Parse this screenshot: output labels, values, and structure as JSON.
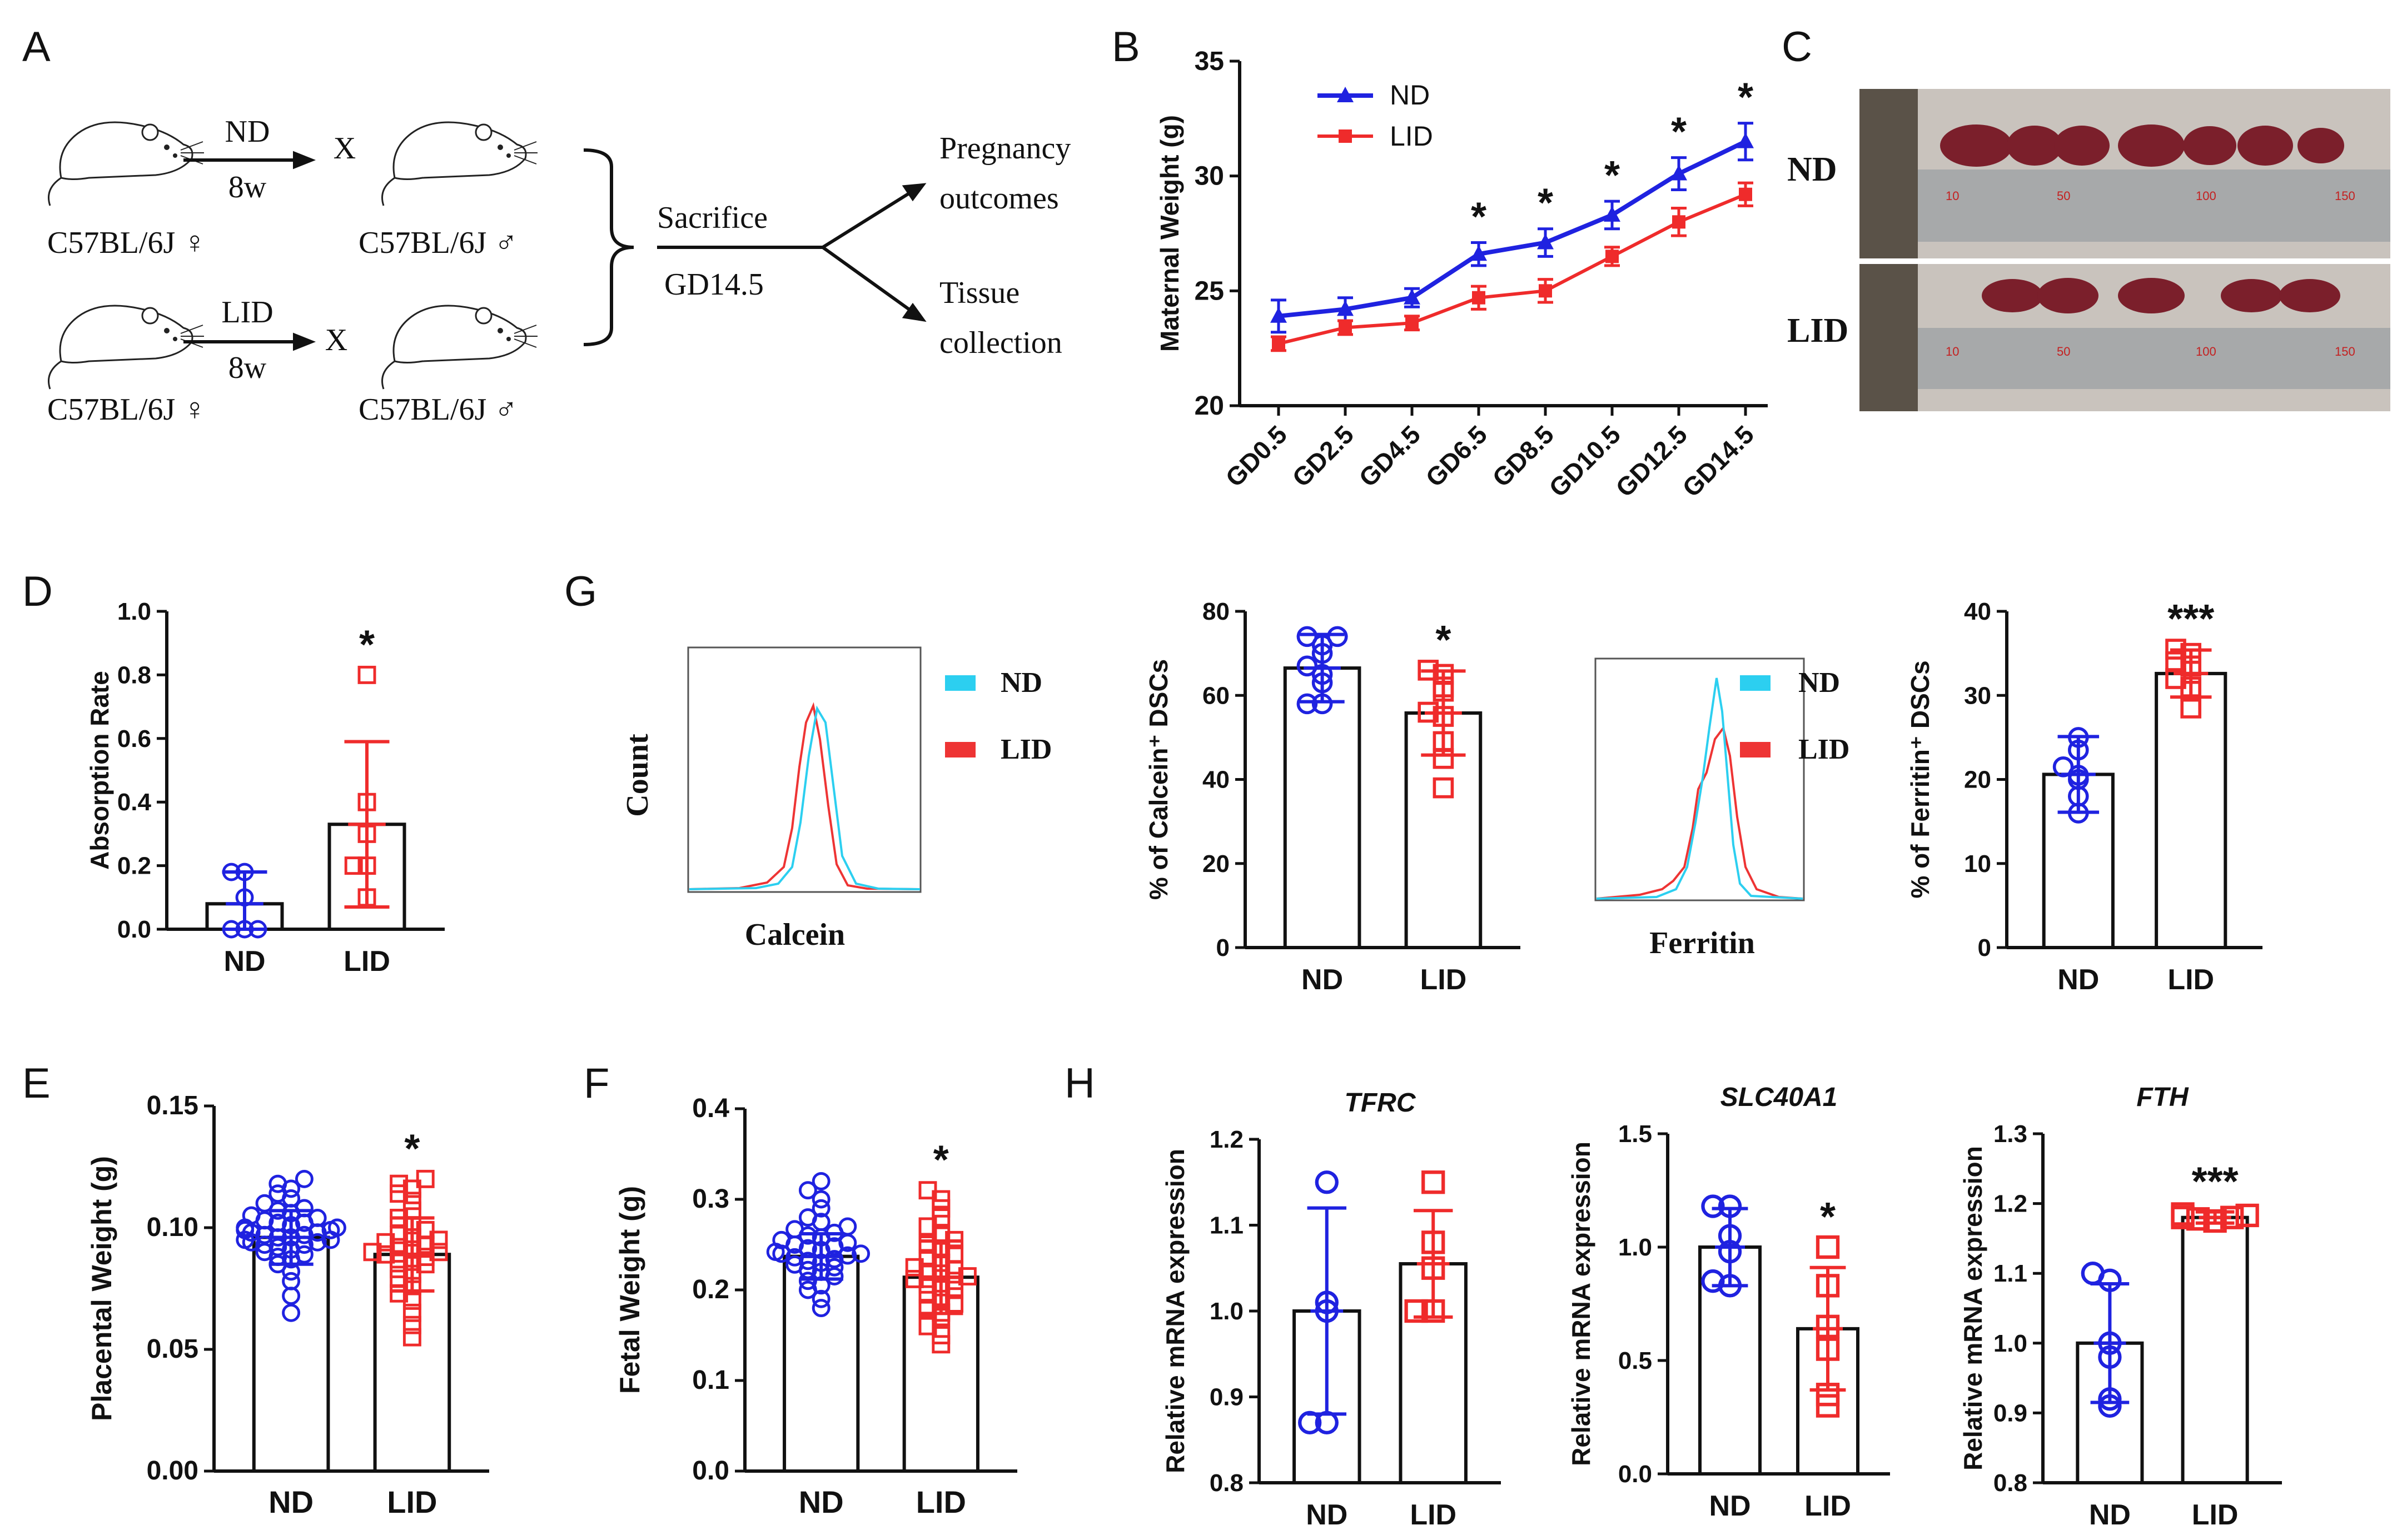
{
  "panel_letters": {
    "A": "A",
    "B": "B",
    "C": "C",
    "D": "D",
    "E": "E",
    "F": "F",
    "G": "G",
    "H": "H"
  },
  "schematic": {
    "top_arrow_label": "ND",
    "bottom_arrow_label": "LID",
    "duration": "8w",
    "cross": "X",
    "female": "C57BL/6J ♀",
    "male": "C57BL/6J ♂",
    "sacrifice": "Sacrifice",
    "gd": "GD14.5",
    "outcome1_line1": "Pregnancy",
    "outcome1_line2": "outcomes",
    "outcome2_line1": "Tissue",
    "outcome2_line2": "collection"
  },
  "photo": {
    "row1_label": "ND",
    "row2_label": "LID",
    "ruler_ticks": [
      "10",
      "50",
      "100",
      "150"
    ]
  },
  "colors": {
    "nd": "#1f22e0",
    "lid": "#ef2b2b",
    "cyan": "#2ccff0",
    "red_line": "#ee3434"
  },
  "chart_data": [
    {
      "id": "B",
      "type": "line",
      "ylabel": "Maternal Weight (g)",
      "ylim": [
        20,
        35
      ],
      "yticks": [
        20,
        25,
        30,
        35
      ],
      "categories": [
        "GD0.5",
        "GD2.5",
        "GD4.5",
        "GD6.5",
        "GD8.5",
        "GD10.5",
        "GD12.5",
        "GD14.5"
      ],
      "series": [
        {
          "name": "ND",
          "values": [
            23.9,
            24.2,
            24.7,
            26.6,
            27.1,
            28.3,
            30.1,
            31.5
          ],
          "errors": [
            0.7,
            0.5,
            0.4,
            0.5,
            0.6,
            0.6,
            0.7,
            0.8
          ]
        },
        {
          "name": "LID",
          "values": [
            22.7,
            23.4,
            23.6,
            24.7,
            25.0,
            26.5,
            28.0,
            29.2
          ],
          "errors": [
            0.3,
            0.3,
            0.3,
            0.5,
            0.5,
            0.4,
            0.6,
            0.5
          ]
        }
      ],
      "significance": [
        "",
        "",
        "",
        "*",
        "*",
        "*",
        "*",
        "*"
      ],
      "legend": "top-left"
    },
    {
      "id": "D",
      "type": "bar",
      "ylabel": "Absorption Rate",
      "ylim": [
        0,
        1.0
      ],
      "yticks": [
        "0.0",
        "0.2",
        "0.4",
        "0.6",
        "0.8",
        "1.0"
      ],
      "categories": [
        "ND",
        "LID"
      ],
      "values": [
        0.08,
        0.33
      ],
      "errors": [
        0.1,
        0.26
      ],
      "points": [
        [
          0.0,
          0.0,
          0.0,
          0.1,
          0.18,
          0.18
        ],
        [
          0.1,
          0.2,
          0.3,
          0.4,
          0.8,
          0.2
        ]
      ],
      "significance": [
        "",
        "*"
      ]
    },
    {
      "id": "E",
      "type": "bar",
      "ylabel": "Placental Weight (g)",
      "ylim": [
        0,
        0.15
      ],
      "yticks": [
        "0.00",
        "0.05",
        "0.10",
        "0.15"
      ],
      "categories": [
        "ND",
        "LID"
      ],
      "values": [
        0.096,
        0.089
      ],
      "errors": [
        0.011,
        0.015
      ],
      "points": [
        [
          0.065,
          0.072,
          0.078,
          0.082,
          0.085,
          0.087,
          0.088,
          0.089,
          0.09,
          0.091,
          0.092,
          0.093,
          0.093,
          0.094,
          0.094,
          0.095,
          0.095,
          0.096,
          0.096,
          0.097,
          0.097,
          0.098,
          0.098,
          0.099,
          0.099,
          0.1,
          0.1,
          0.101,
          0.102,
          0.102,
          0.103,
          0.104,
          0.105,
          0.106,
          0.107,
          0.108,
          0.11,
          0.112,
          0.114,
          0.116,
          0.118,
          0.12
        ],
        [
          0.055,
          0.06,
          0.065,
          0.07,
          0.073,
          0.076,
          0.079,
          0.081,
          0.083,
          0.085,
          0.086,
          0.087,
          0.088,
          0.089,
          0.09,
          0.09,
          0.091,
          0.092,
          0.093,
          0.094,
          0.095,
          0.096,
          0.097,
          0.099,
          0.101,
          0.104,
          0.107,
          0.111,
          0.114,
          0.116,
          0.118,
          0.12
        ]
      ],
      "significance": [
        "",
        "*"
      ]
    },
    {
      "id": "F",
      "type": "bar",
      "ylabel": "Fetal Weight (g)",
      "ylim": [
        0,
        0.4
      ],
      "yticks": [
        "0.0",
        "0.1",
        "0.2",
        "0.3",
        "0.4"
      ],
      "categories": [
        "ND",
        "LID"
      ],
      "values": [
        0.237,
        0.214
      ],
      "errors": [
        0.025,
        0.04
      ],
      "points": [
        [
          0.18,
          0.19,
          0.2,
          0.205,
          0.21,
          0.215,
          0.22,
          0.222,
          0.225,
          0.228,
          0.23,
          0.232,
          0.234,
          0.236,
          0.238,
          0.24,
          0.24,
          0.242,
          0.244,
          0.246,
          0.248,
          0.25,
          0.252,
          0.255,
          0.258,
          0.26,
          0.263,
          0.267,
          0.27,
          0.275,
          0.28,
          0.29,
          0.3,
          0.31,
          0.32
        ],
        [
          0.14,
          0.15,
          0.16,
          0.17,
          0.175,
          0.18,
          0.185,
          0.19,
          0.195,
          0.2,
          0.203,
          0.206,
          0.21,
          0.212,
          0.215,
          0.218,
          0.22,
          0.222,
          0.225,
          0.23,
          0.235,
          0.24,
          0.245,
          0.25,
          0.255,
          0.26,
          0.27,
          0.28,
          0.29,
          0.3,
          0.31
        ]
      ],
      "significance": [
        "",
        "*"
      ]
    },
    {
      "id": "G_calcein_hist",
      "type": "line",
      "xlabel": "Calcein",
      "ylabel": "Count",
      "series": [
        {
          "name": "ND"
        },
        {
          "name": "LID"
        }
      ]
    },
    {
      "id": "G_calcein_bar",
      "type": "bar",
      "ylabel": "% of  Calcein⁺ DSCs",
      "ylim": [
        0,
        80
      ],
      "yticks": [
        "0",
        "20",
        "40",
        "60",
        "80"
      ],
      "categories": [
        "ND",
        "LID"
      ],
      "values": [
        66.5,
        55.8
      ],
      "errors": [
        8,
        10
      ],
      "points": [
        [
          58,
          58,
          63,
          65,
          67,
          70,
          72,
          74,
          74
        ],
        [
          38,
          45,
          49,
          55,
          56,
          61,
          62,
          65,
          66
        ]
      ],
      "significance": [
        "",
        "*"
      ]
    },
    {
      "id": "G_ferritin_hist",
      "type": "line",
      "xlabel": "Ferritin",
      "series": [
        {
          "name": "ND"
        },
        {
          "name": "LID"
        }
      ]
    },
    {
      "id": "G_ferritin_bar",
      "type": "bar",
      "ylabel": "% of  Ferritin⁺ DSCs",
      "ylim": [
        0,
        40
      ],
      "yticks": [
        "0",
        "10",
        "20",
        "30",
        "40"
      ],
      "categories": [
        "ND",
        "LID"
      ],
      "values": [
        20.6,
        32.6
      ],
      "errors": [
        4.5,
        2.8
      ],
      "points": [
        [
          16,
          18,
          20,
          20.5,
          21.5,
          23.5,
          25
        ],
        [
          28.5,
          30.5,
          31,
          32,
          33.5,
          34,
          35,
          35.5
        ]
      ],
      "significance": [
        "",
        "***"
      ]
    },
    {
      "id": "H_TFRC",
      "type": "bar",
      "title": "TFRC",
      "ylabel": "Relative mRNA expression",
      "ylim": [
        0.8,
        1.2
      ],
      "yticks": [
        "0.8",
        "0.9",
        "1.0",
        "1.1",
        "1.2"
      ],
      "categories": [
        "ND",
        "LID"
      ],
      "values": [
        1.0,
        1.055
      ],
      "errors": [
        0.12,
        0.062
      ],
      "points": [
        [
          0.87,
          0.87,
          1.0,
          1.01,
          1.15
        ],
        [
          1.0,
          1.0,
          1.05,
          1.08,
          1.15
        ]
      ],
      "significance": [
        "",
        ""
      ]
    },
    {
      "id": "H_SLC40A1",
      "type": "bar",
      "title": "SLC40A1",
      "ylabel": "Relative mRNA expression",
      "ylim": [
        0.0,
        1.5
      ],
      "yticks": [
        "0.0",
        "0.5",
        "1.0",
        "1.5"
      ],
      "categories": [
        "ND",
        "LID"
      ],
      "values": [
        1.0,
        0.64
      ],
      "errors": [
        0.17,
        0.27
      ],
      "points": [
        [
          0.83,
          0.85,
          0.98,
          1.05,
          1.18,
          1.18
        ],
        [
          0.3,
          0.35,
          0.55,
          0.65,
          0.83,
          1.0
        ]
      ],
      "significance": [
        "",
        "*"
      ]
    },
    {
      "id": "H_FTH",
      "type": "bar",
      "title": "FTH",
      "ylabel": "Relative mRNA expression",
      "ylim": [
        0.8,
        1.3
      ],
      "yticks": [
        "0.8",
        "0.9",
        "1.0",
        "1.1",
        "1.2",
        "1.3"
      ],
      "categories": [
        "ND",
        "LID"
      ],
      "values": [
        1.0,
        1.18
      ],
      "errors": [
        0.085,
        0.008
      ],
      "points": [
        [
          0.91,
          0.92,
          0.98,
          1.0,
          1.09,
          1.1
        ],
        [
          1.175,
          1.178,
          1.18,
          1.18,
          1.183,
          1.185
        ]
      ],
      "significance": [
        "",
        "***"
      ]
    }
  ]
}
